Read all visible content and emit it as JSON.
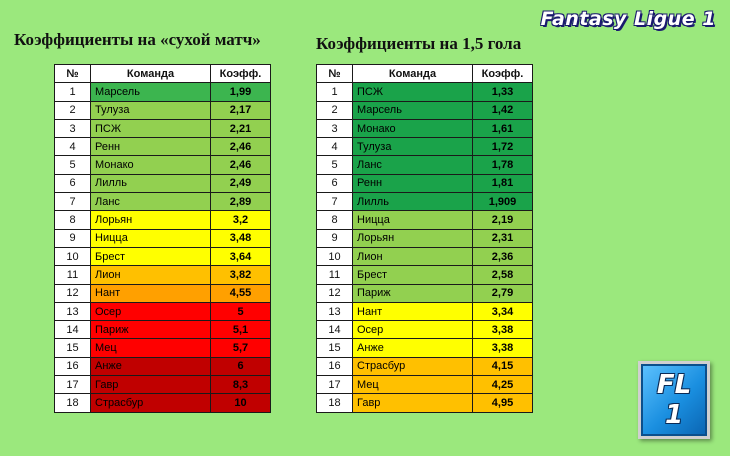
{
  "brand": "Fantasy Ligue 1",
  "logo": {
    "line1": "FL",
    "line2": "1"
  },
  "colors": {
    "dark_green": "#1aa34a",
    "green": "#3cb54f",
    "light_green": "#92d050",
    "yellow": "#ffff00",
    "amber": "#ffc000",
    "orange": "#ffa000",
    "red": "#ff0000",
    "dark_red": "#c00000"
  },
  "tables": [
    {
      "title": "Коэффициенты на «сухой матч»",
      "headers": [
        "№",
        "Команда",
        "Коэфф."
      ],
      "rows": [
        {
          "num": "1",
          "team": "Марсель",
          "coef": "1,99",
          "color": "#3cb54f"
        },
        {
          "num": "2",
          "team": "Тулуза",
          "coef": "2,17",
          "color": "#92d050"
        },
        {
          "num": "3",
          "team": "ПСЖ",
          "coef": "2,21",
          "color": "#92d050"
        },
        {
          "num": "4",
          "team": "Ренн",
          "coef": "2,46",
          "color": "#92d050"
        },
        {
          "num": "5",
          "team": "Монако",
          "coef": "2,46",
          "color": "#92d050"
        },
        {
          "num": "6",
          "team": "Лилль",
          "coef": "2,49",
          "color": "#92d050"
        },
        {
          "num": "7",
          "team": "Ланс",
          "coef": "2,89",
          "color": "#92d050"
        },
        {
          "num": "8",
          "team": "Лорьян",
          "coef": "3,2",
          "color": "#ffff00"
        },
        {
          "num": "9",
          "team": "Ницца",
          "coef": "3,48",
          "color": "#ffff00"
        },
        {
          "num": "10",
          "team": "Брест",
          "coef": "3,64",
          "color": "#ffff00"
        },
        {
          "num": "11",
          "team": "Лион",
          "coef": "3,82",
          "color": "#ffc000"
        },
        {
          "num": "12",
          "team": "Нант",
          "coef": "4,55",
          "color": "#ffa000"
        },
        {
          "num": "13",
          "team": "Осер",
          "coef": "5",
          "color": "#ff0000"
        },
        {
          "num": "14",
          "team": "Париж",
          "coef": "5,1",
          "color": "#ff0000"
        },
        {
          "num": "15",
          "team": "Мец",
          "coef": "5,7",
          "color": "#ff0000"
        },
        {
          "num": "16",
          "team": "Анже",
          "coef": "6",
          "color": "#c00000"
        },
        {
          "num": "17",
          "team": "Гавр",
          "coef": "8,3",
          "color": "#c00000"
        },
        {
          "num": "18",
          "team": "Страсбур",
          "coef": "10",
          "color": "#c00000"
        }
      ]
    },
    {
      "title": "Коэффициенты на 1,5 гола",
      "headers": [
        "№",
        "Команда",
        "Коэфф."
      ],
      "rows": [
        {
          "num": "1",
          "team": "ПСЖ",
          "coef": "1,33",
          "color": "#1aa34a"
        },
        {
          "num": "2",
          "team": "Марсель",
          "coef": "1,42",
          "color": "#1aa34a"
        },
        {
          "num": "3",
          "team": "Монако",
          "coef": "1,61",
          "color": "#1aa34a"
        },
        {
          "num": "4",
          "team": "Тулуза",
          "coef": "1,72",
          "color": "#1aa34a"
        },
        {
          "num": "5",
          "team": "Ланс",
          "coef": "1,78",
          "color": "#1aa34a"
        },
        {
          "num": "6",
          "team": "Ренн",
          "coef": "1,81",
          "color": "#1aa34a"
        },
        {
          "num": "7",
          "team": "Лилль",
          "coef": "1,909",
          "color": "#1aa34a"
        },
        {
          "num": "8",
          "team": "Ницца",
          "coef": "2,19",
          "color": "#92d050"
        },
        {
          "num": "9",
          "team": "Лорьян",
          "coef": "2,31",
          "color": "#92d050"
        },
        {
          "num": "10",
          "team": "Лион",
          "coef": "2,36",
          "color": "#92d050"
        },
        {
          "num": "11",
          "team": "Брест",
          "coef": "2,58",
          "color": "#92d050"
        },
        {
          "num": "12",
          "team": "Париж",
          "coef": "2,79",
          "color": "#92d050"
        },
        {
          "num": "13",
          "team": "Нант",
          "coef": "3,34",
          "color": "#ffff00"
        },
        {
          "num": "14",
          "team": "Осер",
          "coef": "3,38",
          "color": "#ffff00"
        },
        {
          "num": "15",
          "team": "Анже",
          "coef": "3,38",
          "color": "#ffff00"
        },
        {
          "num": "16",
          "team": "Страсбур",
          "coef": "4,15",
          "color": "#ffc000"
        },
        {
          "num": "17",
          "team": "Мец",
          "coef": "4,25",
          "color": "#ffc000"
        },
        {
          "num": "18",
          "team": "Гавр",
          "coef": "4,95",
          "color": "#ffc000"
        }
      ]
    }
  ]
}
